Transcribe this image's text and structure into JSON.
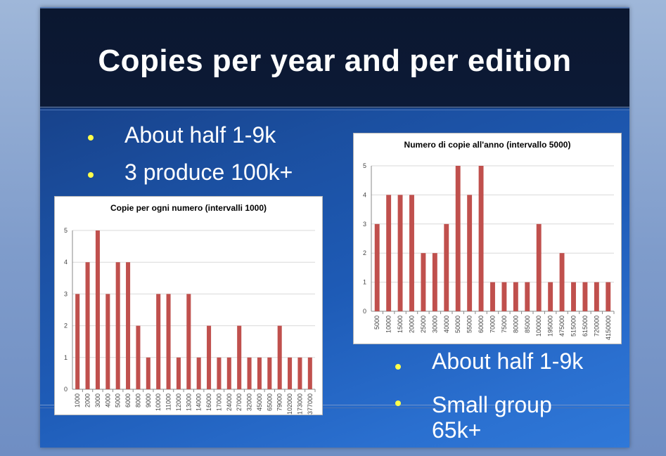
{
  "slide": {
    "title": "Copies per year and per edition",
    "bullets_top": [
      "About half 1-9k",
      "3 produce 100k+"
    ],
    "bullets_bottom": [
      "About half 1-9k",
      "Small group",
      "65k+"
    ]
  },
  "colors": {
    "bar": "#c0504d",
    "bullet_dot": "#ffff4a",
    "title_bar": "#0c1a36"
  },
  "chart_data": [
    {
      "type": "bar",
      "title": "Copie per ogni numero (intervalli 1000)",
      "categories": [
        "1000",
        "2000",
        "3000",
        "4000",
        "5000",
        "6000",
        "8000",
        "9000",
        "10000",
        "11000",
        "12000",
        "13000",
        "14000",
        "16000",
        "17000",
        "24000",
        "27000",
        "32000",
        "45000",
        "65000",
        "79000",
        "102000",
        "173000",
        "377000"
      ],
      "values": [
        3,
        4,
        5,
        3,
        4,
        4,
        2,
        1,
        3,
        3,
        1,
        3,
        1,
        2,
        1,
        1,
        2,
        1,
        1,
        1,
        2,
        1,
        1,
        1
      ],
      "ylim": [
        0,
        5
      ],
      "yticks": [
        "0",
        "1",
        "2",
        "3",
        "4",
        "5"
      ],
      "grid": true
    },
    {
      "type": "bar",
      "title": "Numero di copie all'anno (intervallo 5000)",
      "categories": [
        "5000",
        "10000",
        "15000",
        "20000",
        "25000",
        "30000",
        "40000",
        "50000",
        "55000",
        "60000",
        "70000",
        "75000",
        "80000",
        "85000",
        "100000",
        "195000",
        "475000",
        "515000",
        "615000",
        "720000",
        "4150000"
      ],
      "values": [
        3,
        4,
        4,
        4,
        2,
        2,
        3,
        5,
        4,
        5,
        1,
        1,
        1,
        1,
        3,
        1,
        2,
        1,
        1,
        1,
        1
      ],
      "ylim": [
        0,
        5
      ],
      "yticks": [
        "0",
        "1",
        "2",
        "3",
        "4",
        "5"
      ],
      "grid": true
    }
  ]
}
